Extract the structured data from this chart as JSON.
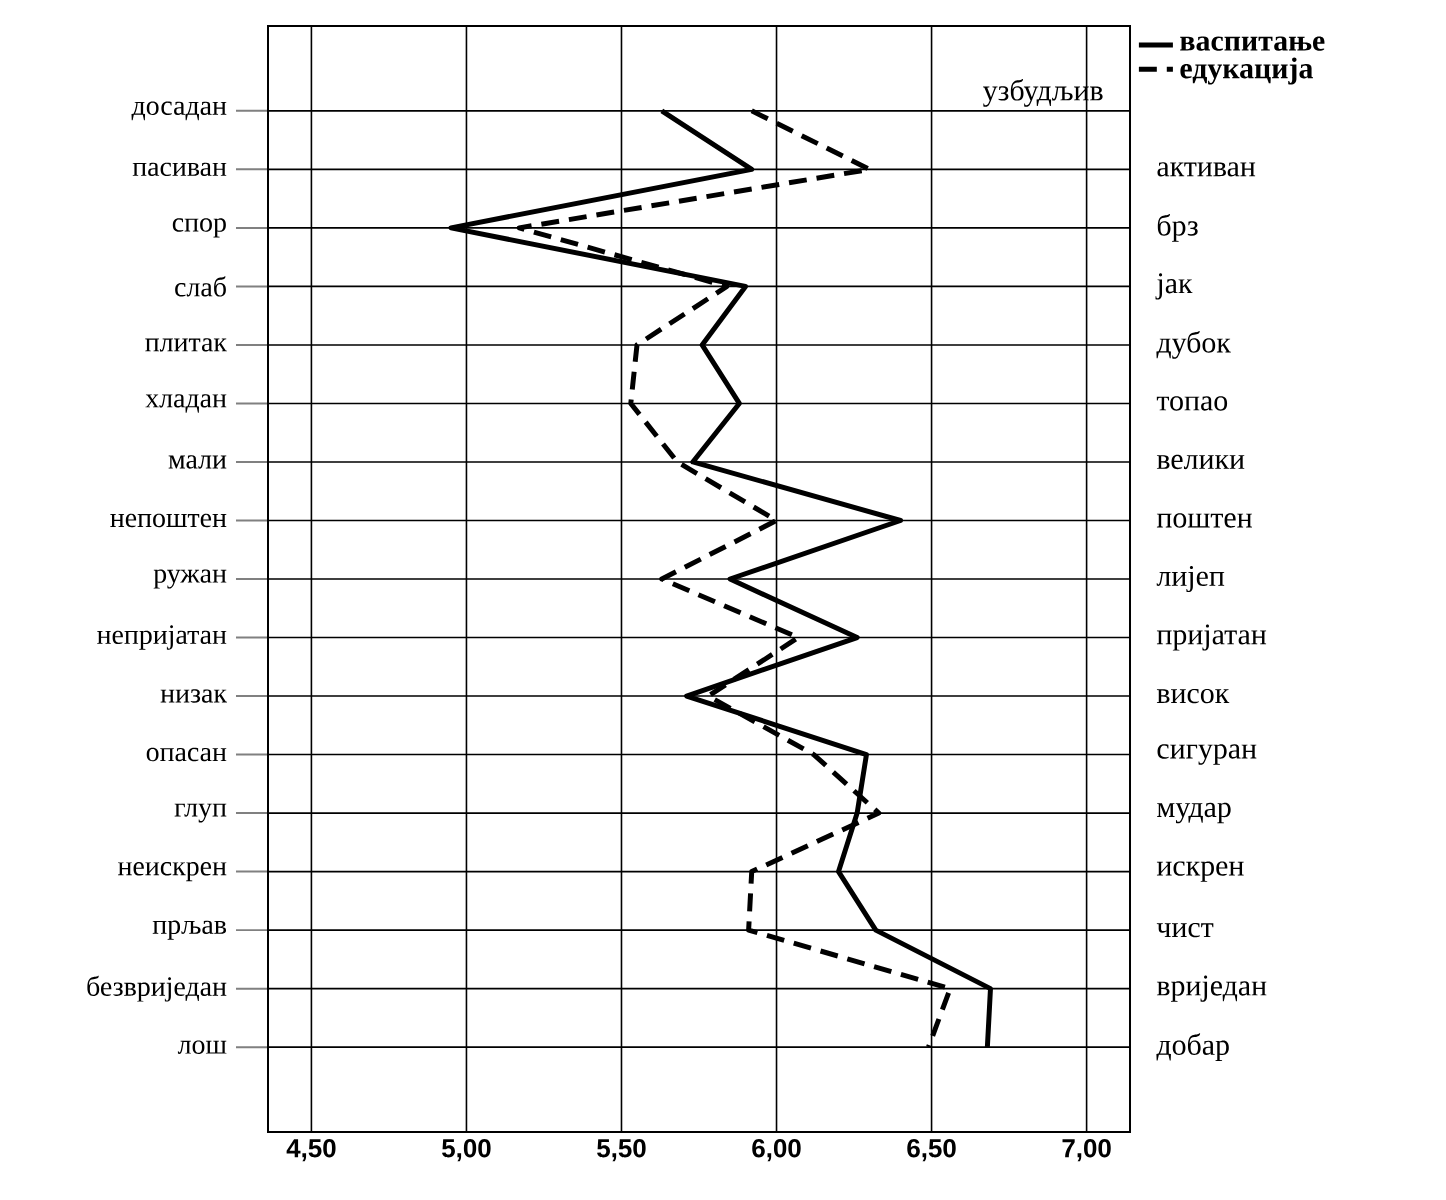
{
  "chart_data": {
    "type": "line",
    "orientation": "horizontal",
    "categories": [
      "досадан",
      "пасиван",
      "спор",
      "слаб",
      "плитак",
      "хладан",
      "мали",
      "непоштен",
      "ружан",
      "непријатан",
      "низак",
      "опасан",
      "глуп",
      "неискрен",
      "прљав",
      "безвриједан",
      "лош"
    ],
    "y2_categories": [
      "узбудљив",
      "активан",
      "брз",
      "јак",
      "дубок",
      "топао",
      "велики",
      "поштен",
      "лијеп",
      "пријатан",
      "висок",
      "сигуран",
      "мудар",
      "искрен",
      "чист",
      "вриједан",
      "добар"
    ],
    "series": [
      {
        "name": "васпитање",
        "color": "#000000",
        "line_style": "solid",
        "values": [
          5.63,
          5.92,
          4.95,
          5.9,
          5.76,
          5.88,
          5.73,
          6.4,
          5.85,
          6.26,
          5.71,
          6.29,
          6.26,
          6.2,
          6.32,
          6.69,
          6.68
        ]
      },
      {
        "name": "едукација",
        "color": "#000000",
        "line_style": "dashed",
        "values": [
          5.92,
          6.3,
          5.17,
          5.84,
          5.55,
          5.53,
          5.68,
          6.0,
          5.63,
          6.07,
          5.78,
          6.12,
          6.33,
          5.92,
          5.91,
          6.56,
          6.49
        ]
      }
    ],
    "xlim": [
      4.36,
      7.14
    ],
    "xticks": [
      {
        "value": 4.5,
        "label": "4,50"
      },
      {
        "value": 5.0,
        "label": "5,00"
      },
      {
        "value": 5.5,
        "label": "5,50"
      },
      {
        "value": 6.0,
        "label": "6,00"
      },
      {
        "value": 6.5,
        "label": "6,50"
      },
      {
        "value": 7.0,
        "label": "7,00"
      }
    ],
    "grid": true,
    "legend": "top right"
  }
}
